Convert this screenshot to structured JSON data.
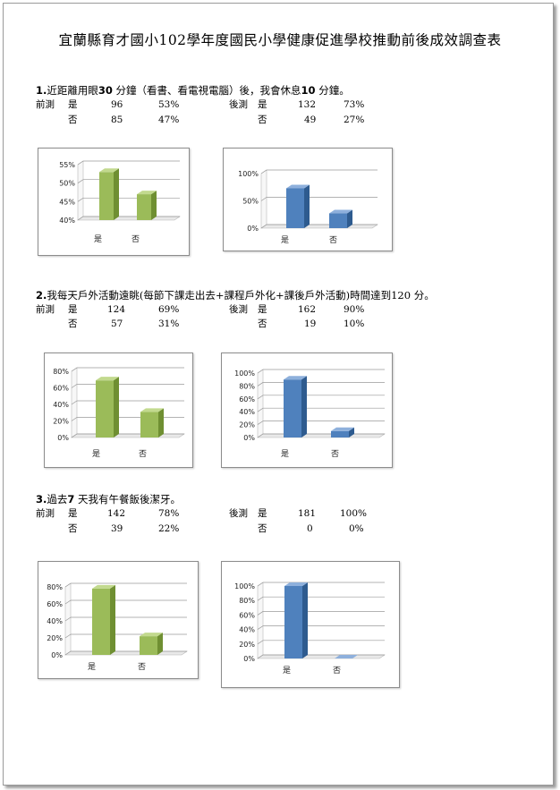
{
  "title": "宜蘭縣育才國小102學年度國民小學健康促進學校推動前後成效調查表",
  "questions": [
    {
      "num": "1.",
      "text_a": "近距離用眼",
      "num_a": "30",
      "text_b": " 分鐘（看書、看電視電腦）後，我會休息",
      "num_b": "10",
      "text_c": " 分鐘。",
      "pre_label": "前測",
      "post_label": "後測",
      "rows": [
        {
          "answer": "是",
          "pre_count": "96",
          "pre_pct": "53%",
          "post_count": "132",
          "post_pct": "73%"
        },
        {
          "answer": "否",
          "pre_count": "85",
          "pre_pct": "47%",
          "post_count": "49",
          "post_pct": "27%"
        }
      ]
    },
    {
      "num": "2.",
      "text_a": "我每天戶外活動遠眺(每節下課走出去+課程戶外化+課後戶外活動)時間達到120 分。",
      "num_a": "",
      "text_b": "",
      "num_b": "",
      "text_c": "",
      "pre_label": "前測",
      "post_label": "後測",
      "rows": [
        {
          "answer": "是",
          "pre_count": "124",
          "pre_pct": "69%",
          "post_count": "162",
          "post_pct": "90%"
        },
        {
          "answer": "否",
          "pre_count": "57",
          "pre_pct": "31%",
          "post_count": "19",
          "post_pct": "10%"
        }
      ]
    },
    {
      "num": "3.",
      "text_a": "過去",
      "num_a": "7",
      "text_b": " 天我有午餐飯後潔牙。",
      "num_b": "",
      "text_c": "",
      "pre_label": "前測",
      "post_label": "後測",
      "rows": [
        {
          "answer": "是",
          "pre_count": "142",
          "pre_pct": "78%",
          "post_count": "181",
          "post_pct": "100%"
        },
        {
          "answer": "否",
          "pre_count": "39",
          "pre_pct": "22%",
          "post_count": "0",
          "post_pct": "0%"
        }
      ]
    }
  ],
  "colors": {
    "green_front": "#9bbb59",
    "green_side": "#6f8f32",
    "green_top": "#c2d98e",
    "blue_front": "#4f81bd",
    "blue_side": "#2e5b8f",
    "blue_top": "#8eb0dc"
  },
  "chart_data": [
    {
      "type": "bar",
      "categories": [
        "是",
        "否"
      ],
      "values": [
        53,
        47
      ],
      "ylim": [
        40,
        55
      ],
      "yticks": [
        "40%",
        "45%",
        "50%",
        "55%"
      ],
      "color": "green"
    },
    {
      "type": "bar",
      "categories": [
        "是",
        "否"
      ],
      "values": [
        73,
        27
      ],
      "ylim": [
        0,
        100
      ],
      "yticks": [
        "0%",
        "50%",
        "100%"
      ],
      "color": "blue"
    },
    {
      "type": "bar",
      "categories": [
        "是",
        "否"
      ],
      "values": [
        69,
        31
      ],
      "ylim": [
        0,
        80
      ],
      "yticks": [
        "0%",
        "20%",
        "40%",
        "60%",
        "80%"
      ],
      "color": "green"
    },
    {
      "type": "bar",
      "categories": [
        "是",
        "否"
      ],
      "values": [
        90,
        10
      ],
      "ylim": [
        0,
        100
      ],
      "yticks": [
        "0%",
        "20%",
        "40%",
        "60%",
        "80%",
        "100%"
      ],
      "color": "blue"
    },
    {
      "type": "bar",
      "categories": [
        "是",
        "否"
      ],
      "values": [
        78,
        22
      ],
      "ylim": [
        0,
        80
      ],
      "yticks": [
        "0%",
        "20%",
        "40%",
        "60%",
        "80%"
      ],
      "color": "green"
    },
    {
      "type": "bar",
      "categories": [
        "是",
        "否"
      ],
      "values": [
        100,
        0
      ],
      "ylim": [
        0,
        100
      ],
      "yticks": [
        "0%",
        "20%",
        "40%",
        "60%",
        "80%",
        "100%"
      ],
      "color": "blue"
    }
  ]
}
